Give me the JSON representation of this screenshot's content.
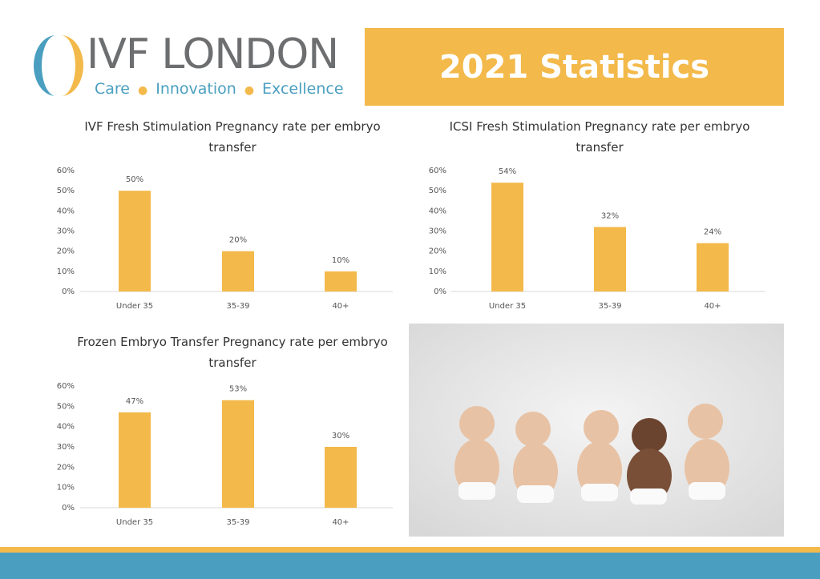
{
  "header": {
    "logo": "IVF LONDON",
    "tagline": [
      "Care",
      "Innovation",
      "Excellence"
    ],
    "title": "2021 Statistics"
  },
  "chart_data": [
    {
      "type": "bar",
      "title": "IVF Fresh Stimulation Pregnancy rate per embryo transfer",
      "categories": [
        "Under 35",
        "35-39",
        "40+"
      ],
      "values": [
        50,
        20,
        10
      ],
      "value_labels": [
        "50%",
        "20%",
        "10%"
      ],
      "color": "#f3b94a",
      "ylim": [
        0,
        60
      ],
      "yticks": [
        {
          "value": 0,
          "label": "0%"
        },
        {
          "value": 10,
          "label": "10%"
        },
        {
          "value": 20,
          "label": "20%"
        },
        {
          "value": 30,
          "label": "30%"
        },
        {
          "value": 40,
          "label": "40%"
        },
        {
          "value": 50,
          "label": "50%"
        },
        {
          "value": 60,
          "label": "60%"
        }
      ]
    },
    {
      "type": "bar",
      "title": "ICSI Fresh Stimulation Pregnancy rate per embryo transfer",
      "categories": [
        "Under 35",
        "35-39",
        "40+"
      ],
      "values": [
        54,
        32,
        24
      ],
      "value_labels": [
        "54%",
        "32%",
        "24%"
      ],
      "color": "#f3b94a",
      "ylim": [
        0,
        60
      ],
      "yticks": [
        {
          "value": 0,
          "label": "0%"
        },
        {
          "value": 10,
          "label": "10%"
        },
        {
          "value": 20,
          "label": "20%"
        },
        {
          "value": 30,
          "label": "30%"
        },
        {
          "value": 40,
          "label": "40%"
        },
        {
          "value": 50,
          "label": "50%"
        },
        {
          "value": 60,
          "label": "60%"
        }
      ]
    },
    {
      "type": "bar",
      "title": "Frozen Embryo Transfer Pregnancy rate per embryo transfer",
      "categories": [
        "Under 35",
        "35-39",
        "40+"
      ],
      "values": [
        47,
        53,
        30
      ],
      "value_labels": [
        "47%",
        "53%",
        "30%"
      ],
      "color": "#f3b94a",
      "ylim": [
        0,
        60
      ],
      "yticks": [
        {
          "value": 0,
          "label": "0%"
        },
        {
          "value": 10,
          "label": "10%"
        },
        {
          "value": 20,
          "label": "20%"
        },
        {
          "value": 30,
          "label": "30%"
        },
        {
          "value": 40,
          "label": "40%"
        },
        {
          "value": 50,
          "label": "50%"
        },
        {
          "value": 60,
          "label": "60%"
        }
      ]
    }
  ]
}
